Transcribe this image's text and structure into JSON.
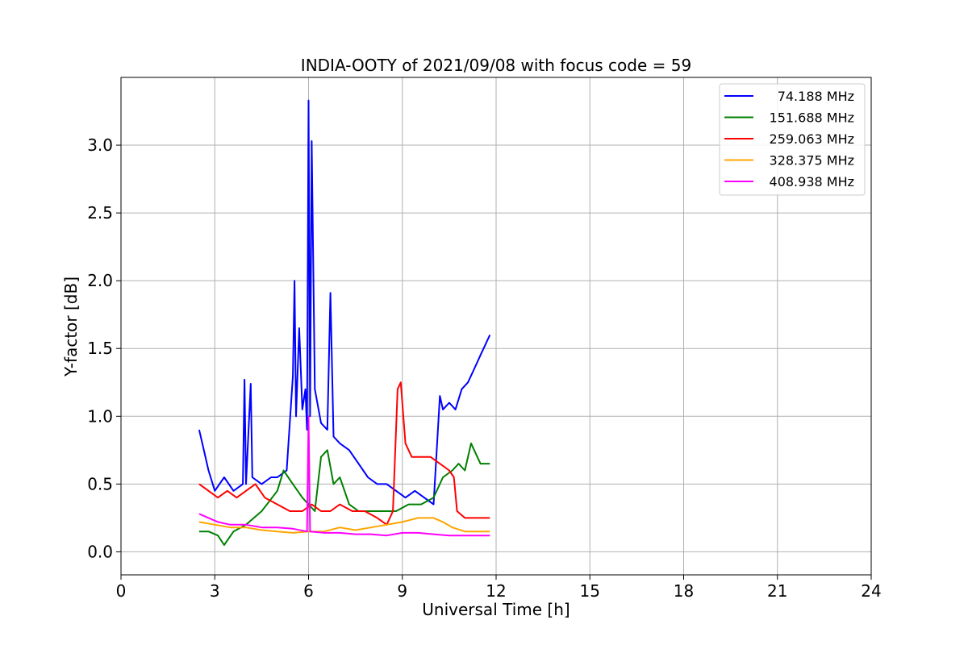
{
  "chart_data": {
    "type": "line",
    "title": "INDIA-OOTY of 2021/09/08 with focus code = 59",
    "xlabel": "Universal Time [h]",
    "ylabel": "Y-factor [dB]",
    "xlim": [
      0,
      24
    ],
    "ylim": [
      -0.17,
      3.5
    ],
    "xticks": [
      0,
      3,
      6,
      9,
      12,
      15,
      18,
      21,
      24
    ],
    "xtick_labels": [
      "0",
      "3",
      "6",
      "9",
      "12",
      "15",
      "18",
      "21",
      "24"
    ],
    "yticks": [
      0.0,
      0.5,
      1.0,
      1.5,
      2.0,
      2.5,
      3.0
    ],
    "ytick_labels": [
      "0.0",
      "0.5",
      "1.0",
      "1.5",
      "2.0",
      "2.5",
      "3.0"
    ],
    "grid": true,
    "legend_position": "top-right",
    "series": [
      {
        "name": "74.188 MHz",
        "color": "#0000ff",
        "x": [
          2.5,
          2.6,
          2.8,
          3.0,
          3.3,
          3.6,
          3.9,
          3.95,
          4.0,
          4.15,
          4.2,
          4.5,
          4.8,
          5.0,
          5.3,
          5.5,
          5.55,
          5.6,
          5.7,
          5.8,
          5.9,
          5.95,
          6.0,
          6.05,
          6.1,
          6.2,
          6.4,
          6.6,
          6.7,
          6.8,
          7.0,
          7.3,
          7.6,
          7.9,
          8.2,
          8.5,
          8.8,
          9.1,
          9.4,
          9.7,
          10.0,
          10.2,
          10.3,
          10.5,
          10.7,
          10.9,
          11.1,
          11.3,
          11.5,
          11.7,
          11.8
        ],
        "y": [
          0.9,
          0.8,
          0.6,
          0.45,
          0.55,
          0.45,
          0.5,
          1.27,
          0.5,
          1.24,
          0.55,
          0.5,
          0.55,
          0.55,
          0.6,
          1.3,
          2.0,
          1.0,
          1.65,
          1.05,
          1.2,
          0.9,
          3.33,
          1.0,
          3.03,
          1.2,
          0.95,
          0.9,
          1.91,
          0.85,
          0.8,
          0.75,
          0.65,
          0.55,
          0.5,
          0.5,
          0.45,
          0.4,
          0.45,
          0.4,
          0.35,
          1.15,
          1.05,
          1.1,
          1.05,
          1.2,
          1.25,
          1.35,
          1.45,
          1.55,
          1.6
        ]
      },
      {
        "name": "151.688 MHz",
        "color": "#008000",
        "x": [
          2.5,
          2.8,
          3.1,
          3.3,
          3.6,
          4.0,
          4.5,
          5.0,
          5.2,
          5.5,
          5.8,
          6.0,
          6.2,
          6.4,
          6.6,
          6.8,
          7.0,
          7.3,
          7.6,
          8.0,
          8.4,
          8.8,
          9.2,
          9.6,
          10.0,
          10.3,
          10.6,
          10.8,
          11.0,
          11.2,
          11.5,
          11.8
        ],
        "y": [
          0.15,
          0.15,
          0.12,
          0.05,
          0.15,
          0.2,
          0.3,
          0.45,
          0.6,
          0.5,
          0.4,
          0.35,
          0.3,
          0.7,
          0.75,
          0.5,
          0.55,
          0.35,
          0.3,
          0.3,
          0.3,
          0.3,
          0.35,
          0.35,
          0.4,
          0.55,
          0.6,
          0.65,
          0.6,
          0.8,
          0.65,
          0.65
        ]
      },
      {
        "name": "259.063 MHz",
        "color": "#ff0000",
        "x": [
          2.5,
          2.8,
          3.1,
          3.4,
          3.7,
          4.0,
          4.3,
          4.6,
          5.0,
          5.4,
          5.8,
          6.1,
          6.4,
          6.7,
          7.0,
          7.4,
          7.8,
          8.2,
          8.5,
          8.7,
          8.85,
          8.95,
          9.1,
          9.3,
          9.6,
          9.9,
          10.2,
          10.5,
          10.65,
          10.75,
          11.0,
          11.4,
          11.8
        ],
        "y": [
          0.5,
          0.45,
          0.4,
          0.45,
          0.4,
          0.45,
          0.5,
          0.4,
          0.35,
          0.3,
          0.3,
          0.35,
          0.3,
          0.3,
          0.35,
          0.3,
          0.3,
          0.25,
          0.2,
          0.3,
          1.2,
          1.25,
          0.8,
          0.7,
          0.7,
          0.7,
          0.65,
          0.6,
          0.55,
          0.3,
          0.25,
          0.25,
          0.25
        ]
      },
      {
        "name": "328.375 MHz",
        "color": "#ffa500",
        "x": [
          2.5,
          3.0,
          3.5,
          4.0,
          4.5,
          5.0,
          5.5,
          6.0,
          6.5,
          7.0,
          7.5,
          8.0,
          8.5,
          9.0,
          9.5,
          10.0,
          10.3,
          10.6,
          11.0,
          11.4,
          11.8
        ],
        "y": [
          0.22,
          0.2,
          0.18,
          0.18,
          0.16,
          0.15,
          0.14,
          0.15,
          0.15,
          0.18,
          0.16,
          0.18,
          0.2,
          0.22,
          0.25,
          0.25,
          0.22,
          0.18,
          0.15,
          0.15,
          0.15
        ]
      },
      {
        "name": "408.938 MHz",
        "color": "#ff00ff",
        "x": [
          2.5,
          2.8,
          3.1,
          3.5,
          4.0,
          4.5,
          5.0,
          5.5,
          5.95,
          6.0,
          6.05,
          6.5,
          7.0,
          7.5,
          8.0,
          8.5,
          9.0,
          9.5,
          10.0,
          10.5,
          11.0,
          11.5,
          11.8
        ],
        "y": [
          0.28,
          0.25,
          0.22,
          0.2,
          0.2,
          0.18,
          0.18,
          0.17,
          0.15,
          1.0,
          0.15,
          0.14,
          0.14,
          0.13,
          0.13,
          0.12,
          0.14,
          0.14,
          0.13,
          0.12,
          0.12,
          0.12,
          0.12
        ]
      }
    ]
  }
}
